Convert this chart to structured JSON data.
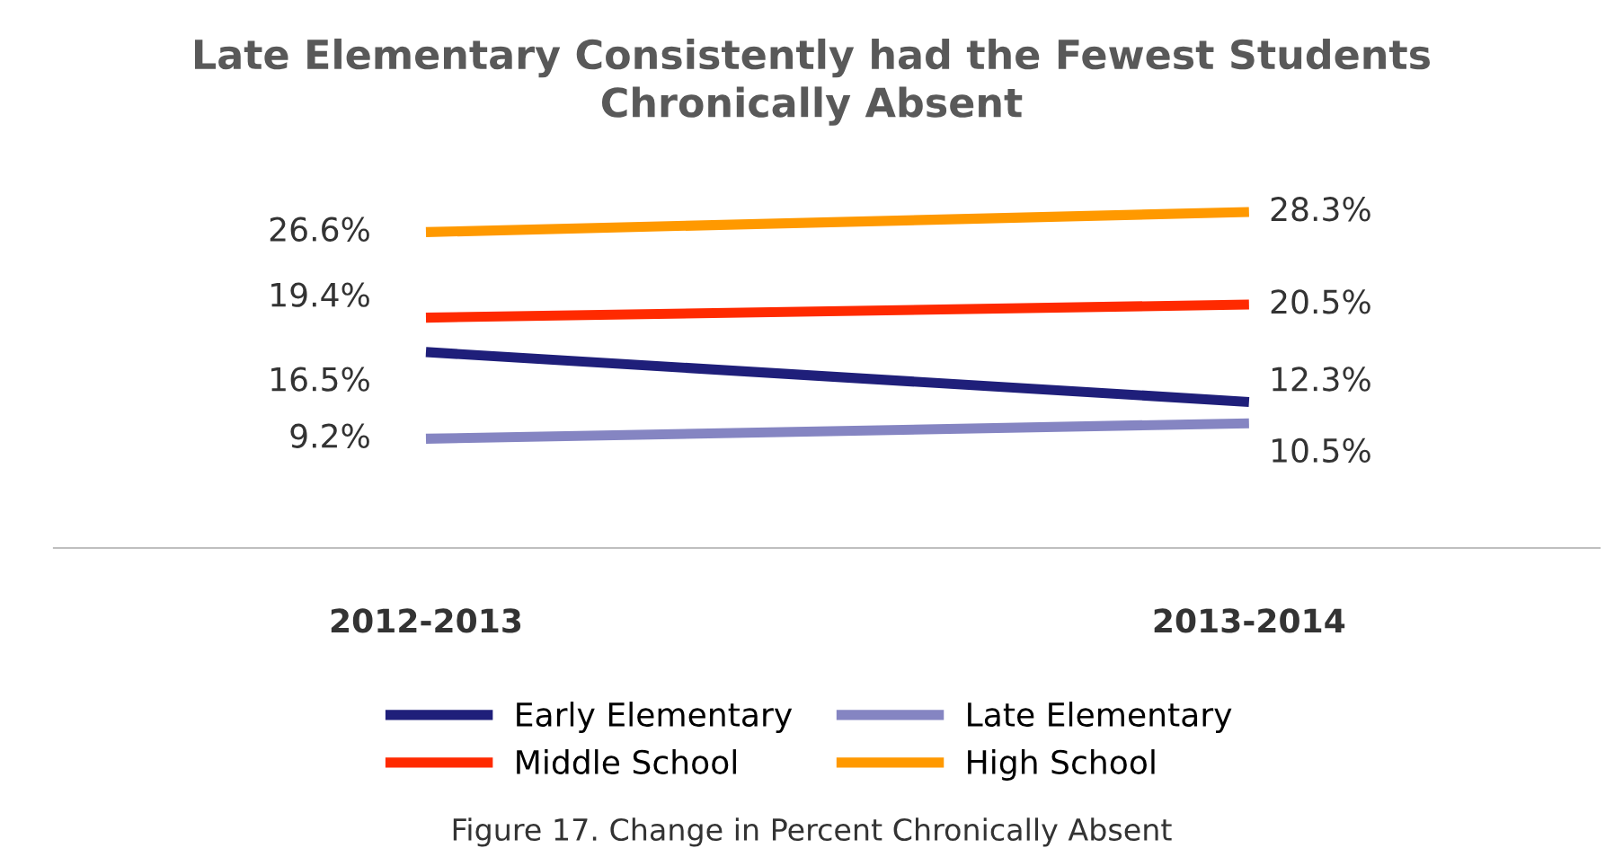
{
  "chart_data": {
    "type": "line",
    "title": "Late Elementary Consistently had the Fewest Students\nChronically Absent",
    "categories": [
      "2012-2013",
      "2013-2014"
    ],
    "series": [
      {
        "name": "Early Elementary",
        "color": "#1f1f7a",
        "values": [
          16.5,
          12.3
        ],
        "value_labels": [
          "16.5%",
          "12.3%"
        ]
      },
      {
        "name": "Late Elementary",
        "color": "#8585c2",
        "values": [
          9.2,
          10.5
        ],
        "value_labels": [
          "9.2%",
          "10.5%"
        ]
      },
      {
        "name": "Middle School",
        "color": "#ff2a00",
        "values": [
          19.4,
          20.5
        ],
        "value_labels": [
          "19.4%",
          "20.5%"
        ]
      },
      {
        "name": "High School",
        "color": "#ff9900",
        "values": [
          26.6,
          28.3
        ],
        "value_labels": [
          "26.6%",
          "28.3%"
        ]
      }
    ],
    "tick_labels": "x",
    "legend": "bottom",
    "marker": "none",
    "line_style": "solid",
    "grid": false,
    "annotations": [
      "Figure 17. Change in Percent Chronically Absent"
    ]
  }
}
